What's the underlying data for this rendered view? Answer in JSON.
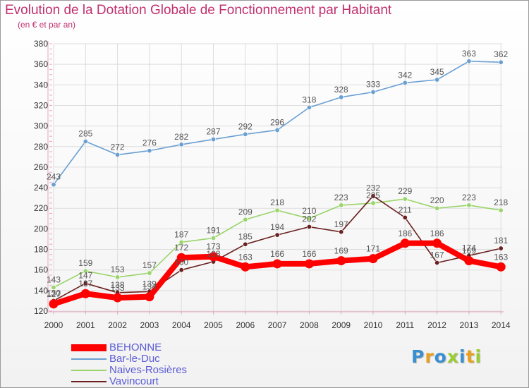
{
  "title": "Evolution de la Dotation Globale de Fonctionnement par Habitant",
  "subtitle": "(en € et par an)",
  "colors": {
    "title": "#c0306e",
    "axis": "#e8a8c4",
    "grid": "#dddddd",
    "tick_label": "#333333",
    "value_label": "#555555",
    "legend_text": "#5b5bd6"
  },
  "logo": {
    "text": "Proxiti",
    "letter_colors": [
      "#3a8fd0",
      "#e8a020",
      "#3a8fd0",
      "#9acd32",
      "#3a8fd0",
      "#e8a020",
      "#9acd32"
    ]
  },
  "chart_data": {
    "type": "line",
    "title": "Evolution de la Dotation Globale de Fonctionnement par Habitant",
    "subtitle": "(en € et par an)",
    "xlabel": "",
    "ylabel": "",
    "x": [
      "2000",
      "2001",
      "2002",
      "2003",
      "2004",
      "2005",
      "2006",
      "2007",
      "2008",
      "2009",
      "2010",
      "2011",
      "2012",
      "2013",
      "2014"
    ],
    "ylim": [
      120,
      380
    ],
    "yticks": [
      120,
      140,
      160,
      180,
      200,
      220,
      240,
      260,
      280,
      300,
      320,
      340,
      360,
      380
    ],
    "grid": true,
    "legend_position": "bottom-left",
    "series": [
      {
        "name": "BEHONNE",
        "color": "#ff0000",
        "values": [
          127,
          137,
          133,
          134,
          172,
          173,
          163,
          166,
          166,
          169,
          171,
          186,
          186,
          169,
          163
        ],
        "labels": [
          "127",
          "137",
          "133",
          "134",
          "172",
          "173",
          "163",
          "166",
          "166",
          "169",
          "171",
          "186",
          "186",
          "169",
          "163"
        ]
      },
      {
        "name": "Bar-le-Duc",
        "color": "#6a9fd2",
        "values": [
          243,
          285,
          272,
          276,
          282,
          287,
          292,
          296,
          318,
          328,
          333,
          342,
          345,
          363,
          362
        ],
        "labels": [
          "243",
          "285",
          "272",
          "276",
          "282",
          "287",
          "292",
          "296",
          "318",
          "328",
          "333",
          "342",
          "345",
          "363",
          "362"
        ]
      },
      {
        "name": "Naives-Rosières",
        "color": "#9ad46a",
        "values": [
          143,
          159,
          153,
          157,
          187,
          191,
          209,
          218,
          210,
          223,
          225,
          229,
          220,
          223,
          218
        ],
        "labels": [
          "143",
          "159",
          "153",
          "157",
          "187",
          "191",
          "209",
          "218",
          "210",
          "223",
          "225",
          "229",
          "220",
          "223",
          "218"
        ]
      },
      {
        "name": "Vavincourt",
        "color": "#6b2020",
        "values": [
          130,
          147,
          138,
          139,
          160,
          168,
          185,
          194,
          202,
          197,
          232,
          211,
          167,
          174,
          181
        ],
        "labels": [
          "130",
          "147",
          "138",
          "139",
          "160",
          "168",
          "185",
          "194",
          "202",
          "197",
          "232",
          "211",
          "167",
          "174",
          "181"
        ]
      }
    ]
  }
}
